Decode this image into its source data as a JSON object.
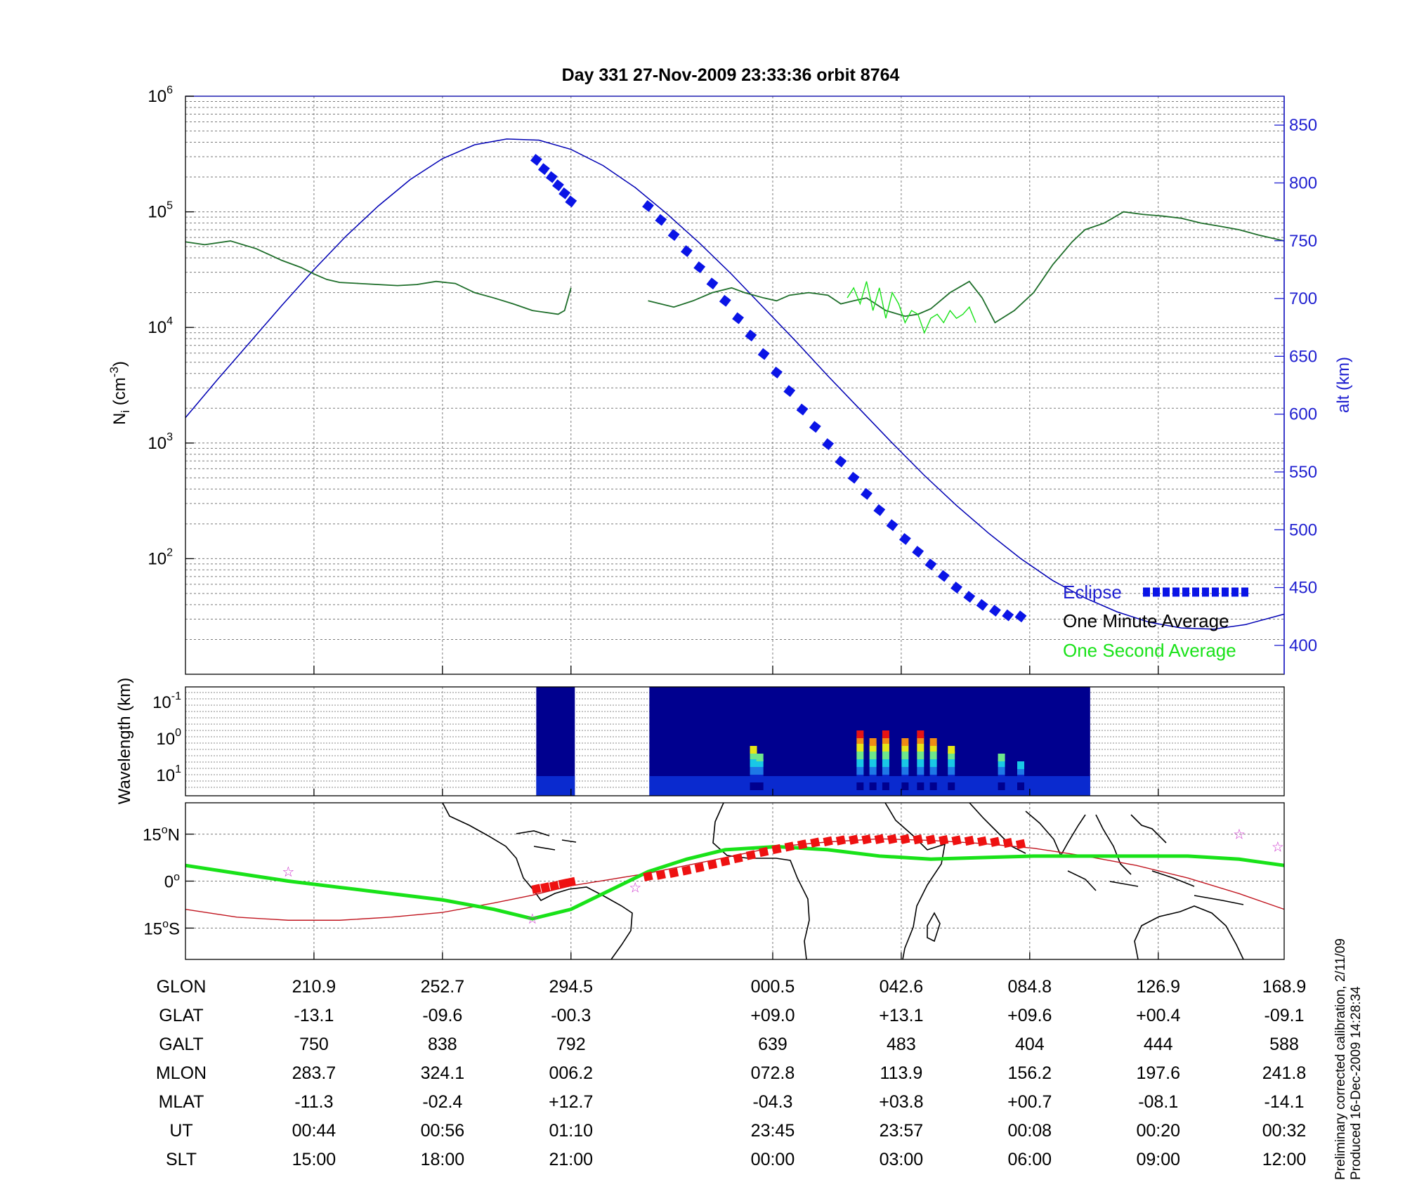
{
  "title": "Day 331  27-Nov-2009 23:33:36   orbit 8764",
  "chart_data": [
    {
      "type": "line",
      "panel": "density",
      "ylabel": "N",
      "ylabel_sub": "i",
      "ylabel_unit": "(cm",
      "ylabel_unit_sup": "-3",
      "ylabel_close": ")",
      "yscale": "log",
      "ylim": [
        10,
        1000000
      ],
      "y_ticks": [
        {
          "base": "10",
          "exp": "6",
          "v": 1000000
        },
        {
          "base": "10",
          "exp": "5",
          "v": 100000
        },
        {
          "base": "10",
          "exp": "4",
          "v": 10000
        },
        {
          "base": "10",
          "exp": "3",
          "v": 1000
        },
        {
          "base": "10",
          "exp": "2",
          "v": 100
        }
      ],
      "y2label": "alt (km)",
      "y2lim": [
        375,
        875
      ],
      "y2_ticks": [
        850,
        800,
        750,
        700,
        650,
        600,
        550,
        500,
        450,
        400
      ],
      "xlim": [
        0,
        8.55
      ],
      "x_ticks": [
        1,
        2,
        3,
        4.57,
        5.57,
        6.57,
        7.57
      ],
      "grid": true,
      "legend_position": "bottom-right",
      "colors": {
        "altitude": "#0000b4",
        "eclipse": "#0a14e6",
        "minute": "#1e6e2a",
        "second": "#19e219"
      },
      "series": [
        {
          "name": "Eclipse",
          "role": "eclipse",
          "x": [
            2.73,
            2.79,
            2.85,
            2.9,
            2.95,
            3.0,
            3.6,
            3.7,
            3.8,
            3.9,
            4.0,
            4.1,
            4.2,
            4.3,
            4.4,
            4.5,
            4.6,
            4.7,
            4.8,
            4.9,
            5.0,
            5.1,
            5.2,
            5.3,
            5.4,
            5.5,
            5.6,
            5.7,
            5.8,
            5.9,
            6.0,
            6.1,
            6.2,
            6.3,
            6.4,
            6.5
          ],
          "y": [
            820,
            812,
            805,
            798,
            791,
            784,
            780,
            768,
            755,
            741,
            727,
            713,
            698,
            683,
            668,
            652,
            636,
            620,
            604,
            589,
            574,
            559,
            545,
            531,
            517,
            504,
            492,
            481,
            470,
            460,
            450,
            442,
            435,
            430,
            426,
            425
          ]
        },
        {
          "name": "altitude",
          "role": "altitude",
          "x": [
            0,
            0.25,
            0.5,
            0.75,
            1.0,
            1.25,
            1.5,
            1.75,
            2.0,
            2.25,
            2.5,
            2.75,
            3.0,
            3.25,
            3.5,
            3.75,
            4.0,
            4.25,
            4.5,
            4.75,
            5.0,
            5.25,
            5.5,
            5.75,
            6.0,
            6.25,
            6.5,
            6.75,
            7.0,
            7.25,
            7.5,
            7.75,
            8.0,
            8.25,
            8.55
          ],
          "y": [
            597,
            630,
            662,
            694,
            725,
            754,
            780,
            803,
            821,
            833,
            838,
            837,
            829,
            815,
            796,
            773,
            748,
            721,
            692,
            663,
            633,
            604,
            575,
            547,
            521,
            497,
            475,
            456,
            441,
            429,
            420,
            415,
            414,
            418,
            427
          ]
        },
        {
          "name": "One Minute Average",
          "role": "minute",
          "x": [
            0,
            0.15,
            0.35,
            0.55,
            0.75,
            0.9,
            1.0,
            1.1,
            1.2,
            1.35,
            1.5,
            1.65,
            1.8,
            1.95,
            2.1,
            2.25,
            2.4,
            2.55,
            2.7,
            2.8,
            2.9,
            2.95,
            3.0
          ],
          "y": [
            55000,
            52000,
            56000,
            48000,
            38000,
            33000,
            29000,
            26000,
            24500,
            24000,
            23500,
            23000,
            23500,
            25000,
            24000,
            20000,
            18000,
            16000,
            14000,
            13500,
            13000,
            14000,
            22000
          ],
          "x2": [
            3.6,
            3.8,
            3.95,
            4.1,
            4.25,
            4.35,
            4.5,
            4.6,
            4.7,
            4.85,
            5.0,
            5.1,
            5.2,
            5.3,
            5.45,
            5.6,
            5.7,
            5.8,
            5.95,
            6.1,
            6.2,
            6.3,
            6.45,
            6.6,
            6.75,
            6.9,
            7.0,
            7.15,
            7.3,
            7.45,
            7.6,
            7.75,
            7.9,
            8.05,
            8.2,
            8.35,
            8.55
          ],
          "y2": [
            17000,
            15000,
            17000,
            20000,
            22000,
            20000,
            18000,
            17000,
            19000,
            20000,
            19000,
            16000,
            17000,
            18000,
            14000,
            12500,
            13000,
            14500,
            20000,
            25000,
            18000,
            11000,
            14000,
            20000,
            35000,
            55000,
            70000,
            80000,
            100000,
            95000,
            92000,
            88000,
            80000,
            75000,
            70000,
            63000,
            56000
          ]
        },
        {
          "name": "One Second Average",
          "role": "second",
          "x": [
            5.15,
            5.2,
            5.25,
            5.3,
            5.35,
            5.4,
            5.45,
            5.5,
            5.55,
            5.6,
            5.65,
            5.7,
            5.75,
            5.8,
            5.85,
            5.9,
            5.95,
            6.0,
            6.05,
            6.1,
            6.15
          ],
          "y": [
            18000,
            22000,
            16000,
            25000,
            14000,
            22000,
            12000,
            20000,
            16000,
            11000,
            14000,
            13000,
            9000,
            12000,
            13000,
            11000,
            14000,
            12000,
            13000,
            15000,
            11000
          ]
        }
      ]
    },
    {
      "type": "heatmap",
      "panel": "spectrogram",
      "ylabel": "Wavelength (km)",
      "yscale": "log",
      "y_ticks": [
        {
          "base": "10",
          "exp": "-1"
        },
        {
          "base": "10",
          "exp": "0"
        },
        {
          "base": "10",
          "exp": "1"
        }
      ],
      "segments": [
        [
          2.73,
          3.03
        ],
        [
          3.61,
          7.04
        ]
      ],
      "colormap": [
        "#00008f",
        "#0a2acf",
        "#1e78e6",
        "#19c8e6",
        "#6ee68c",
        "#e6e619",
        "#f08c14",
        "#e61414"
      ],
      "bursts": [
        {
          "x": 4.42,
          "level": 5
        },
        {
          "x": 4.47,
          "level": 4
        },
        {
          "x": 5.25,
          "level": 7
        },
        {
          "x": 5.35,
          "level": 6
        },
        {
          "x": 5.45,
          "level": 7
        },
        {
          "x": 5.6,
          "level": 6
        },
        {
          "x": 5.72,
          "level": 7
        },
        {
          "x": 5.82,
          "level": 6
        },
        {
          "x": 5.96,
          "level": 5
        },
        {
          "x": 6.35,
          "level": 4
        },
        {
          "x": 6.5,
          "level": 3
        }
      ]
    },
    {
      "type": "scatter",
      "panel": "map",
      "y_ticks": [
        {
          "deg": "15",
          "hemi": "N",
          "v": 15
        },
        {
          "deg": "0",
          "hemi": "",
          "v": 0
        },
        {
          "deg": "15",
          "hemi": "S",
          "v": -15
        }
      ],
      "ylim": [
        -25,
        25
      ],
      "series": [
        {
          "name": "magnetic equator",
          "role": "green",
          "x": [
            0,
            0.4,
            0.8,
            1.2,
            1.6,
            2.0,
            2.4,
            2.7,
            3.0,
            3.3,
            3.6,
            3.9,
            4.2,
            4.6,
            5.0,
            5.4,
            5.8,
            6.2,
            6.6,
            7.0,
            7.4,
            7.8,
            8.2,
            8.55
          ],
          "y": [
            5,
            2.5,
            0,
            -2,
            -4,
            -6,
            -9,
            -12,
            -9,
            -3,
            3,
            7,
            10,
            11,
            10,
            8,
            7,
            7.5,
            8,
            8,
            8,
            8,
            7,
            5
          ]
        },
        {
          "name": "orbit track",
          "role": "red",
          "x": [
            0,
            0.4,
            0.8,
            1.2,
            1.6,
            2.0,
            2.4,
            2.7,
            3.0,
            3.3,
            3.6,
            3.9,
            4.2,
            4.6,
            5.0,
            5.4,
            5.8,
            6.2,
            6.6,
            7.0,
            7.4,
            7.8,
            8.2,
            8.55
          ],
          "y": [
            -9,
            -11.5,
            -12.5,
            -12.5,
            -11.5,
            -10,
            -7,
            -4.5,
            -1.5,
            0.5,
            2.5,
            5,
            7.5,
            11,
            12.5,
            13.5,
            13,
            12,
            10.5,
            8,
            5,
            1,
            -4,
            -9
          ]
        },
        {
          "name": "eclipse track",
          "role": "eclipse_red",
          "x": [
            2.73,
            2.8,
            2.87,
            2.94,
            3.0,
            3.6,
            3.7,
            3.8,
            3.9,
            4.0,
            4.1,
            4.2,
            4.3,
            4.4,
            4.5,
            4.6,
            4.7,
            4.8,
            4.9,
            5.0,
            5.1,
            5.2,
            5.3,
            5.4,
            5.5,
            5.6,
            5.7,
            5.8,
            5.9,
            6.0,
            6.1,
            6.2,
            6.3,
            6.4,
            6.5
          ],
          "y": [
            -2.5,
            -2,
            -1.5,
            -0.8,
            -0.3,
            1.5,
            2,
            2.6,
            3.4,
            4.3,
            5.3,
            6.3,
            7.3,
            8.3,
            9.3,
            10.2,
            11,
            11.7,
            12.3,
            12.7,
            13,
            13.2,
            13.3,
            13.4,
            13.4,
            13.4,
            13.3,
            13.2,
            13.1,
            13,
            12.9,
            12.7,
            12.5,
            12.2,
            11.8
          ]
        },
        {
          "name": "stars",
          "role": "star",
          "x": [
            0.8,
            2.7,
            3.5,
            8.2,
            8.5
          ],
          "y": [
            3,
            -12,
            -2,
            15,
            11
          ]
        }
      ]
    }
  ],
  "table": {
    "labels": [
      "GLON",
      "GLAT",
      "GALT",
      "MLON",
      "MLAT",
      "UT",
      "SLT"
    ],
    "columns": [
      {
        "x": 1,
        "values": [
          "210.9",
          "-13.1",
          "750",
          "283.7",
          "-11.3",
          "00:44",
          "15:00"
        ]
      },
      {
        "x": 2,
        "values": [
          "252.7",
          "-09.6",
          "838",
          "324.1",
          "-02.4",
          "00:56",
          "18:00"
        ]
      },
      {
        "x": 3,
        "values": [
          "294.5",
          "-00.3",
          "792",
          "006.2",
          "+12.7",
          "01:10",
          "21:00"
        ]
      },
      {
        "x": 4.57,
        "values": [
          "000.5",
          "+09.0",
          "639",
          "072.8",
          "-04.3",
          "23:45",
          "00:00"
        ]
      },
      {
        "x": 5.57,
        "values": [
          "042.6",
          "+13.1",
          "483",
          "113.9",
          "+03.8",
          "23:57",
          "03:00"
        ]
      },
      {
        "x": 6.57,
        "values": [
          "084.8",
          "+09.6",
          "404",
          "156.2",
          "+00.7",
          "00:08",
          "06:00"
        ]
      },
      {
        "x": 7.57,
        "values": [
          "126.9",
          "+00.4",
          "444",
          "197.6",
          "-08.1",
          "00:20",
          "09:00"
        ]
      },
      {
        "x": 8.55,
        "values": [
          "168.9",
          "-09.1",
          "588",
          "241.8",
          "-14.1",
          "00:32",
          "12:00"
        ]
      }
    ]
  },
  "footnote": [
    "Preliminary corrected calibration, 2/11/09",
    "Produced 16-Dec-2009 14:28:34"
  ]
}
